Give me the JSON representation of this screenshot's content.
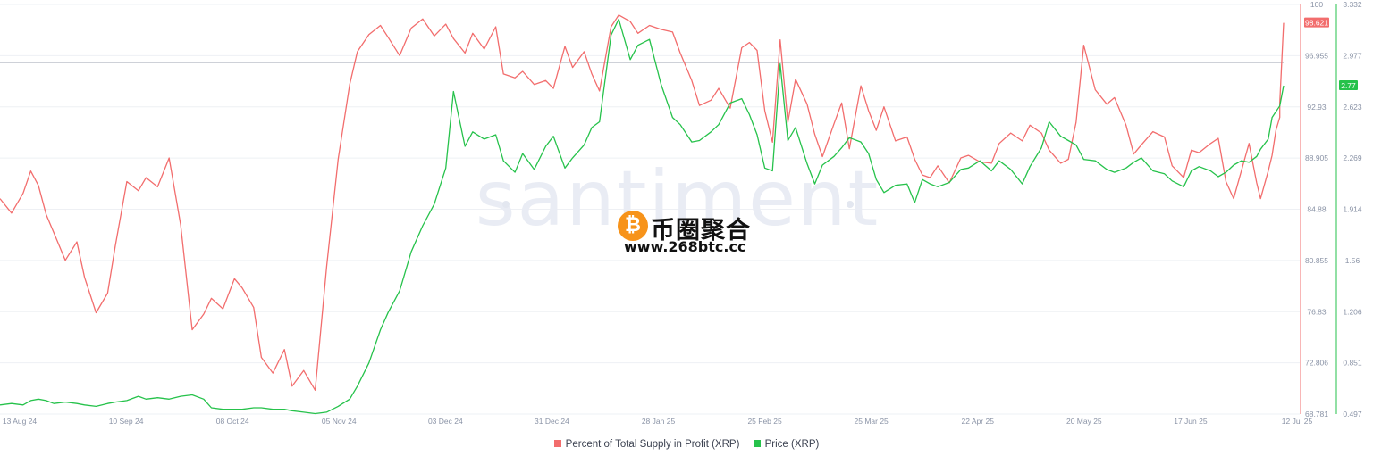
{
  "watermark": {
    "text": "santiment",
    "brand": "币圈聚合",
    "url": "www.268btc.cc",
    "coin_glyph": "₿"
  },
  "legend": [
    {
      "label": "Percent of Total Supply in Profit (XRP)",
      "color": "#f26d6d"
    },
    {
      "label": "Price (XRP)",
      "color": "#26c24b"
    }
  ],
  "chart_data": {
    "type": "line",
    "x_axis": {
      "start": "2024-08-12",
      "end": "2025-07-12",
      "tick_labels": [
        "13 Aug 24",
        "10 Sep 24",
        "08 Oct 24",
        "05 Nov 24",
        "03 Dec 24",
        "31 Dec 24",
        "28 Jan 25",
        "25 Feb 25",
        "25 Mar 25",
        "22 Apr 25",
        "20 May 25",
        "17 Jun 25",
        "12 Jul 25"
      ]
    },
    "y_axis_left": {
      "min": 68.781,
      "max": 100,
      "tick_labels": [
        "100",
        "96.955",
        "92.93",
        "88.905",
        "84.88",
        "80.855",
        "76.83",
        "72.806",
        "68.781"
      ]
    },
    "y_axis_right": {
      "min": 0.497,
      "max": 3.332,
      "tick_labels": [
        "3.332",
        "2.977",
        "2.623",
        "2.269",
        "1.914",
        "1.56",
        "1.206",
        "0.851",
        "0.497"
      ]
    },
    "reference_line": {
      "value": 95.6
    },
    "series": [
      {
        "name": "Percent of Total Supply in Profit (XRP)",
        "color": "#f26d6d",
        "axis": "left",
        "last_value_label": "98.621",
        "values": [
          85.2,
          84.1,
          85.6,
          87.3,
          86.2,
          84.0,
          82.6,
          80.5,
          81.9,
          79.2,
          76.5,
          78.0,
          81.6,
          86.5,
          85.8,
          86.8,
          86.1,
          88.3,
          83.2,
          75.2,
          76.4,
          77.6,
          76.8,
          79.1,
          78.4,
          76.9,
          73.1,
          71.9,
          73.7,
          70.9,
          72.1,
          70.6,
          80.0,
          88.2,
          93.9,
          96.4,
          97.7,
          98.4,
          97.5,
          96.1,
          98.2,
          98.9,
          97.6,
          98.5,
          97.4,
          96.3,
          97.8,
          96.6,
          98.3,
          94.7,
          94.4,
          94.9,
          93.9,
          94.2,
          93.6,
          96.8,
          95.2,
          96.4,
          94.7,
          93.4,
          98.3,
          99.2,
          98.7,
          97.8,
          98.4,
          98.1,
          97.9,
          96.3,
          94.2,
          92.3,
          92.7,
          93.6,
          92.1,
          96.7,
          97.1,
          96.5,
          91.9,
          89.5,
          97.3,
          91.0,
          94.3,
          92.4,
          90.1,
          88.4,
          90.9,
          92.5,
          89.0,
          93.8,
          91.9,
          90.4,
          92.2,
          89.6,
          89.9,
          88.2,
          87.0,
          86.8,
          87.7,
          86.4,
          88.3,
          88.5,
          88.0,
          87.9,
          89.4,
          90.2,
          89.6,
          90.8,
          90.2,
          88.9,
          87.9,
          88.2,
          91.0,
          96.9,
          93.5,
          92.4,
          92.9,
          90.8,
          88.6,
          89.3,
          90.3,
          89.9,
          87.7,
          86.8,
          88.9,
          88.7,
          89.4,
          89.8,
          86.5,
          85.2,
          87.3,
          89.4,
          86.4,
          85.2,
          87.3,
          88.5,
          90.4,
          91.4,
          92.5,
          98.6
        ],
        "dates": [
          "2024-08-12",
          "2024-08-15",
          "2024-08-18",
          "2024-08-20",
          "2024-08-22",
          "2024-08-24",
          "2024-08-26",
          "2024-08-29",
          "2024-09-01",
          "2024-09-03",
          "2024-09-06",
          "2024-09-09",
          "2024-09-11",
          "2024-09-14",
          "2024-09-17",
          "2024-09-19",
          "2024-09-22",
          "2024-09-25",
          "2024-09-28",
          "2024-10-01",
          "2024-10-04",
          "2024-10-06",
          "2024-10-09",
          "2024-10-12",
          "2024-10-14",
          "2024-10-17",
          "2024-10-19",
          "2024-10-22",
          "2024-10-25",
          "2024-10-27",
          "2024-10-30",
          "2024-11-02",
          "2024-11-05",
          "2024-11-08",
          "2024-11-11",
          "2024-11-13",
          "2024-11-16",
          "2024-11-19",
          "2024-11-21",
          "2024-11-24",
          "2024-11-27",
          "2024-11-30",
          "2024-12-03",
          "2024-12-06",
          "2024-12-08",
          "2024-12-11",
          "2024-12-13",
          "2024-12-16",
          "2024-12-19",
          "2024-12-21",
          "2024-12-24",
          "2024-12-26",
          "2024-12-29",
          "2025-01-01",
          "2025-01-03",
          "2025-01-06",
          "2025-01-08",
          "2025-01-11",
          "2025-01-13",
          "2025-01-15",
          "2025-01-18",
          "2025-01-20",
          "2025-01-23",
          "2025-01-25",
          "2025-01-28",
          "2025-01-31",
          "2025-02-03",
          "2025-02-05",
          "2025-02-08",
          "2025-02-10",
          "2025-02-13",
          "2025-02-15",
          "2025-02-18",
          "2025-02-21",
          "2025-02-23",
          "2025-02-25",
          "2025-02-27",
          "2025-03-01",
          "2025-03-03",
          "2025-03-05",
          "2025-03-07",
          "2025-03-10",
          "2025-03-12",
          "2025-03-14",
          "2025-03-17",
          "2025-03-19",
          "2025-03-21",
          "2025-03-24",
          "2025-03-26",
          "2025-03-28",
          "2025-03-30",
          "2025-04-02",
          "2025-04-05",
          "2025-04-07",
          "2025-04-09",
          "2025-04-11",
          "2025-04-13",
          "2025-04-16",
          "2025-04-19",
          "2025-04-21",
          "2025-04-24",
          "2025-04-27",
          "2025-04-29",
          "2025-05-02",
          "2025-05-05",
          "2025-05-07",
          "2025-05-10",
          "2025-05-12",
          "2025-05-15",
          "2025-05-17",
          "2025-05-19",
          "2025-05-21",
          "2025-05-24",
          "2025-05-27",
          "2025-05-29",
          "2025-06-01",
          "2025-06-03",
          "2025-06-05",
          "2025-06-08",
          "2025-06-11",
          "2025-06-13",
          "2025-06-16",
          "2025-06-18",
          "2025-06-20",
          "2025-06-23",
          "2025-06-25",
          "2025-06-27",
          "2025-06-29",
          "2025-07-01",
          "2025-07-03",
          "2025-07-05",
          "2025-07-06",
          "2025-07-08",
          "2025-07-09",
          "2025-07-10",
          "2025-07-11",
          "2025-07-11",
          "2025-07-12"
        ]
      },
      {
        "name": "Price (XRP)",
        "color": "#26c24b",
        "axis": "right",
        "last_value_label": "2.77",
        "values": [
          0.56,
          0.57,
          0.56,
          0.59,
          0.6,
          0.59,
          0.57,
          0.58,
          0.57,
          0.56,
          0.55,
          0.57,
          0.58,
          0.59,
          0.62,
          0.6,
          0.61,
          0.6,
          0.62,
          0.63,
          0.6,
          0.54,
          0.53,
          0.53,
          0.53,
          0.54,
          0.54,
          0.53,
          0.53,
          0.52,
          0.51,
          0.5,
          0.51,
          0.55,
          0.6,
          0.69,
          0.85,
          1.08,
          1.2,
          1.35,
          1.62,
          1.8,
          1.95,
          2.2,
          2.73,
          2.35,
          2.45,
          2.4,
          2.43,
          2.25,
          2.17,
          2.3,
          2.19,
          2.35,
          2.42,
          2.2,
          2.27,
          2.36,
          2.48,
          2.52,
          3.12,
          3.23,
          2.95,
          3.05,
          3.09,
          2.78,
          2.55,
          2.5,
          2.38,
          2.39,
          2.45,
          2.5,
          2.65,
          2.68,
          2.57,
          2.43,
          2.2,
          2.18,
          2.92,
          2.39,
          2.48,
          2.23,
          2.09,
          2.22,
          2.28,
          2.34,
          2.41,
          2.38,
          2.3,
          2.12,
          2.03,
          2.08,
          2.09,
          1.96,
          2.12,
          2.09,
          2.07,
          2.1,
          2.19,
          2.2,
          2.25,
          2.18,
          2.25,
          2.19,
          2.09,
          2.21,
          2.34,
          2.52,
          2.42,
          2.39,
          2.36,
          2.26,
          2.25,
          2.19,
          2.17,
          2.2,
          2.24,
          2.27,
          2.18,
          2.16,
          2.11,
          2.07,
          2.18,
          2.21,
          2.18,
          2.14,
          2.17,
          2.22,
          2.25,
          2.24,
          2.28,
          2.33,
          2.4,
          2.55,
          2.63,
          2.77
        ],
        "dates": [
          "2024-08-12",
          "2024-08-15",
          "2024-08-18",
          "2024-08-20",
          "2024-08-22",
          "2024-08-24",
          "2024-08-26",
          "2024-08-29",
          "2024-09-01",
          "2024-09-03",
          "2024-09-06",
          "2024-09-09",
          "2024-09-11",
          "2024-09-14",
          "2024-09-17",
          "2024-09-19",
          "2024-09-22",
          "2024-09-25",
          "2024-09-28",
          "2024-10-01",
          "2024-10-04",
          "2024-10-06",
          "2024-10-09",
          "2024-10-12",
          "2024-10-14",
          "2024-10-17",
          "2024-10-19",
          "2024-10-22",
          "2024-10-25",
          "2024-10-27",
          "2024-10-30",
          "2024-11-02",
          "2024-11-05",
          "2024-11-08",
          "2024-11-11",
          "2024-11-13",
          "2024-11-16",
          "2024-11-19",
          "2024-11-21",
          "2024-11-24",
          "2024-11-27",
          "2024-11-30",
          "2024-12-03",
          "2024-12-06",
          "2024-12-08",
          "2024-12-11",
          "2024-12-13",
          "2024-12-16",
          "2024-12-19",
          "2024-12-21",
          "2024-12-24",
          "2024-12-26",
          "2024-12-29",
          "2025-01-01",
          "2025-01-03",
          "2025-01-06",
          "2025-01-08",
          "2025-01-11",
          "2025-01-13",
          "2025-01-15",
          "2025-01-18",
          "2025-01-20",
          "2025-01-23",
          "2025-01-25",
          "2025-01-28",
          "2025-01-31",
          "2025-02-03",
          "2025-02-05",
          "2025-02-08",
          "2025-02-10",
          "2025-02-13",
          "2025-02-15",
          "2025-02-18",
          "2025-02-21",
          "2025-02-23",
          "2025-02-25",
          "2025-02-27",
          "2025-03-01",
          "2025-03-03",
          "2025-03-05",
          "2025-03-07",
          "2025-03-10",
          "2025-03-12",
          "2025-03-14",
          "2025-03-17",
          "2025-03-19",
          "2025-03-21",
          "2025-03-24",
          "2025-03-26",
          "2025-03-28",
          "2025-03-30",
          "2025-04-02",
          "2025-04-05",
          "2025-04-07",
          "2025-04-09",
          "2025-04-11",
          "2025-04-13",
          "2025-04-16",
          "2025-04-19",
          "2025-04-21",
          "2025-04-24",
          "2025-04-27",
          "2025-04-29",
          "2025-05-02",
          "2025-05-05",
          "2025-05-07",
          "2025-05-10",
          "2025-05-12",
          "2025-05-15",
          "2025-05-17",
          "2025-05-19",
          "2025-05-21",
          "2025-05-24",
          "2025-05-27",
          "2025-05-29",
          "2025-06-01",
          "2025-06-03",
          "2025-06-05",
          "2025-06-08",
          "2025-06-11",
          "2025-06-13",
          "2025-06-16",
          "2025-06-18",
          "2025-06-20",
          "2025-06-23",
          "2025-06-25",
          "2025-06-27",
          "2025-06-29",
          "2025-07-01",
          "2025-07-03",
          "2025-07-05",
          "2025-07-06",
          "2025-07-08",
          "2025-07-09",
          "2025-07-11",
          "2025-07-12"
        ]
      }
    ],
    "grid": "horizontal"
  }
}
